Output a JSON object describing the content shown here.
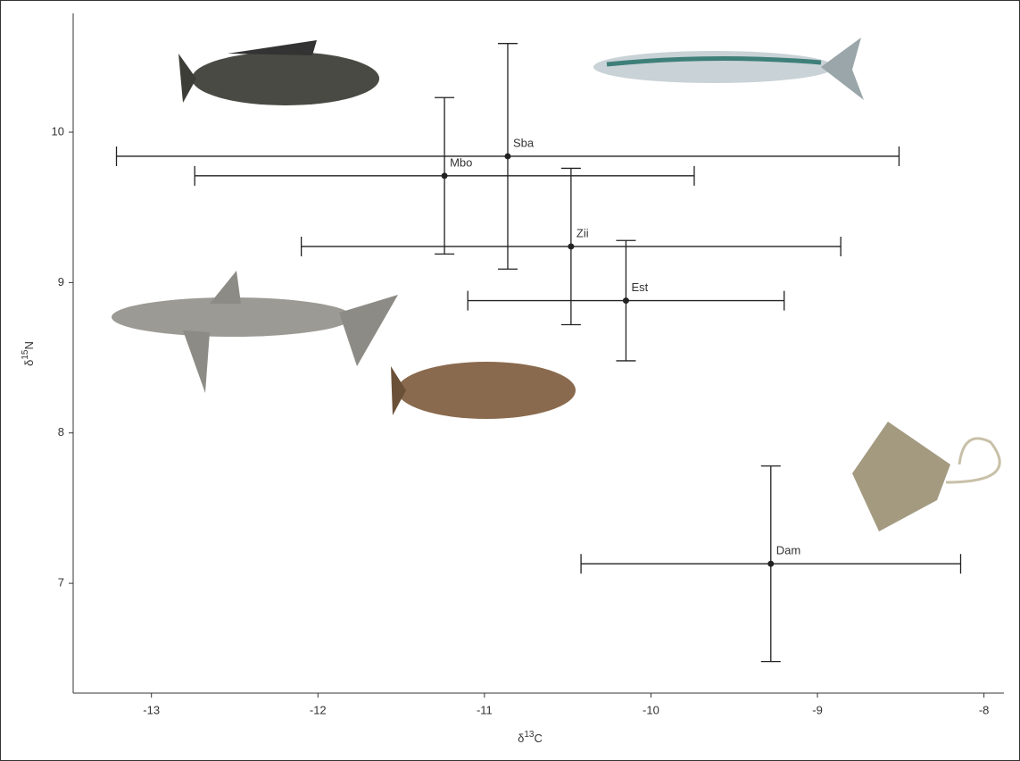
{
  "chart_data": {
    "type": "errorbar-scatter",
    "x_label": {
      "symbol": "δ",
      "sup": "13",
      "element": "C"
    },
    "y_label": {
      "symbol": "δ",
      "sup": "15",
      "element": "N"
    },
    "labels": [
      "Sba",
      "Mbo",
      "Zii",
      "Est",
      "Dam"
    ],
    "x": [
      -10.86,
      -11.24,
      -10.48,
      -10.15,
      -9.28
    ],
    "xerr": [
      2.35,
      1.5,
      1.62,
      0.95,
      1.14
    ],
    "y": [
      9.84,
      9.71,
      9.24,
      8.88,
      7.13
    ],
    "yerr": [
      0.75,
      0.52,
      0.52,
      0.4,
      0.65
    ],
    "color": "#222222",
    "xlim": [
      -13.47,
      -7.88
    ],
    "xticks": [
      -13,
      -12,
      -11,
      -10,
      -9,
      -8
    ],
    "ylim": [
      6.27,
      10.79
    ],
    "yticks": [
      7,
      8,
      9,
      10
    ]
  }
}
